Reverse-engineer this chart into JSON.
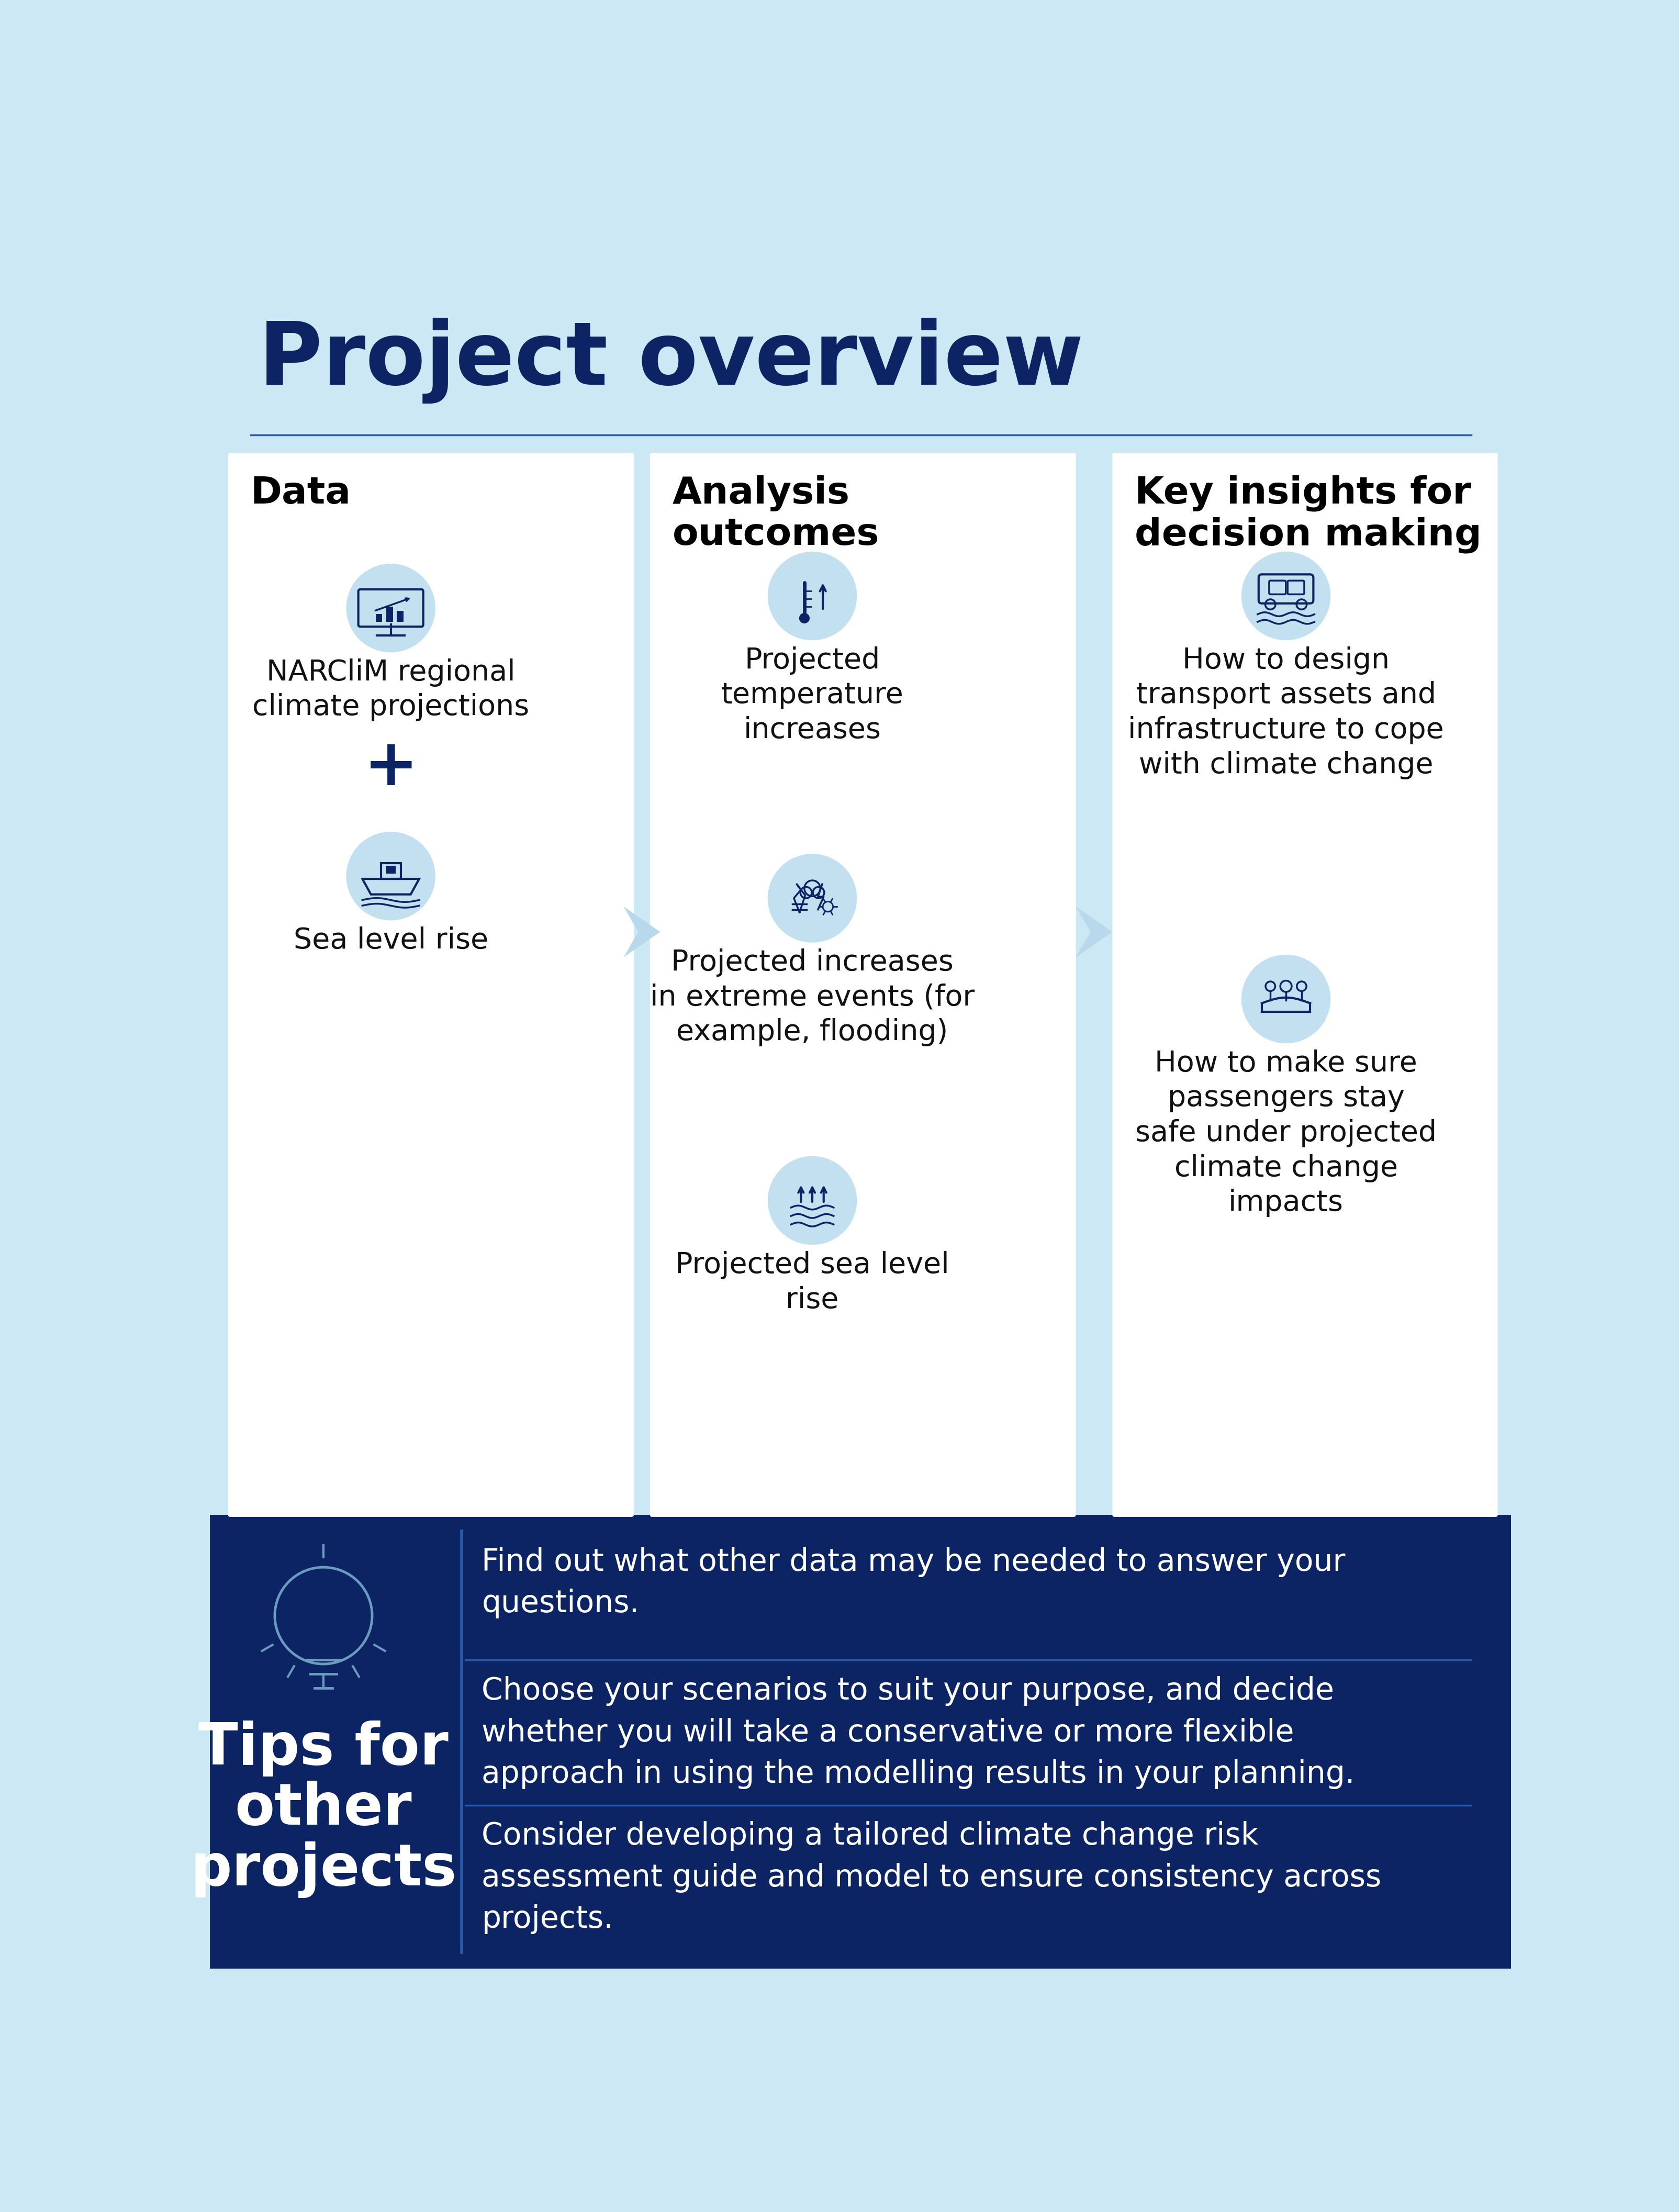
{
  "bg_color": "#cde8f5",
  "dark_bg": "#0d2464",
  "white": "#ffffff",
  "light_blue_circle": "#c2e0f0",
  "title": "Project overview",
  "title_color": "#0d2464",
  "title_fontsize": 120,
  "separator_color": "#2a5aaa",
  "col1_header": "Data",
  "col2_header": "Analysis\noutcomes",
  "col3_header": "Key insights for\ndecision making",
  "col1_items": [
    "NARCliM regional\nclimate projections",
    "Sea level rise"
  ],
  "col2_items": [
    "Projected\ntemperature\nincreases",
    "Projected increases\nin extreme events (for\nexample, flooding)",
    "Projected sea level\nrise"
  ],
  "col3_items": [
    "How to design\ntransport assets and\ninfrastructure to cope\nwith climate change",
    "How to make sure\npassengers stay\nsafe under projected\nclimate change\nimpacts"
  ],
  "tips_title": "Tips for\nother\nprojects",
  "tips": [
    "Find out what other data may be needed to answer your\nquestions.",
    "Choose your scenarios to suit your purpose, and decide\nwhether you will take a conservative or more flexible\napproach in using the modelling results in your planning.",
    "Consider developing a tailored climate change risk\nassessment guide and model to ensure consistency across\nprojects."
  ],
  "icon_color": "#0d2464",
  "header_fontsize": 52,
  "body_fontsize": 40,
  "tips_title_fontsize": 80,
  "tips_fontsize": 42
}
